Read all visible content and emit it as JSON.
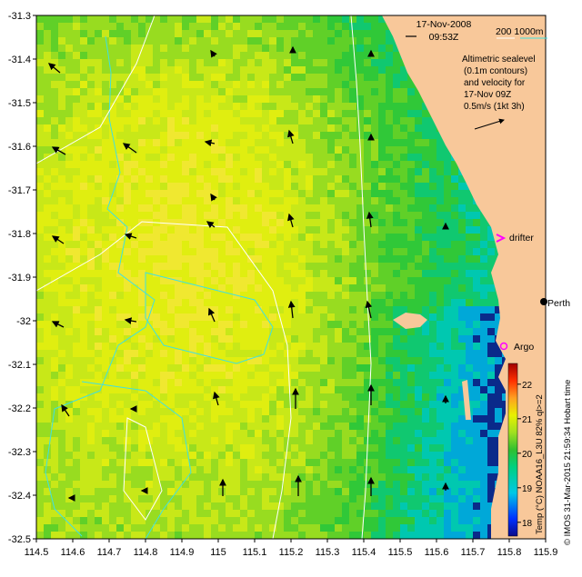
{
  "header": {
    "date": "17-Nov-2008",
    "time": "09:53Z",
    "depth_labels": "200  1000m"
  },
  "legend": {
    "line1": "Altimetric sealevel",
    "line2": "(0.1m contours)",
    "line3": "and velocity for",
    "line4": "17-Nov 09Z",
    "line5": "0.5m/s (1kt 3h)"
  },
  "places": {
    "drifter": "drifter",
    "perth": "Perth",
    "argo": "Argo"
  },
  "colorbar": {
    "label": "Temp (°C) NOAA16_L3U 82% ql>=2",
    "ticks": [
      "18",
      "19",
      "20",
      "21",
      "22"
    ],
    "range": [
      17.6,
      22.6
    ],
    "colors": [
      "#0a0a8a",
      "#0040ff",
      "#00c8e6",
      "#00d080",
      "#30c030",
      "#a0e020",
      "#e8f000",
      "#ffa020",
      "#ff3000",
      "#a00000"
    ]
  },
  "credit": "© IMOS 31-Mar-2015 21:59:34 Hobart time",
  "axes": {
    "x_ticks": [
      "114.5",
      "114.6",
      "114.7",
      "114.8",
      "114.9",
      "115",
      "115.1",
      "115.2",
      "115.3",
      "115.4",
      "115.5",
      "115.6",
      "115.7",
      "115.8",
      "115.9"
    ],
    "y_ticks": [
      "-31.3",
      "-31.4",
      "-31.5",
      "-31.6",
      "-31.7",
      "-31.8",
      "-31.9",
      "-32",
      "-32.1",
      "-32.2",
      "-32.3",
      "-32.4",
      "-32.5"
    ],
    "xlim": [
      114.5,
      115.9
    ],
    "ylim": [
      -32.5,
      -31.3
    ]
  },
  "colors": {
    "land": "#f8c89a",
    "contour_shelf": "#40e0e0",
    "contour_deep": "#ffffff",
    "marker": "#ff00ff"
  }
}
